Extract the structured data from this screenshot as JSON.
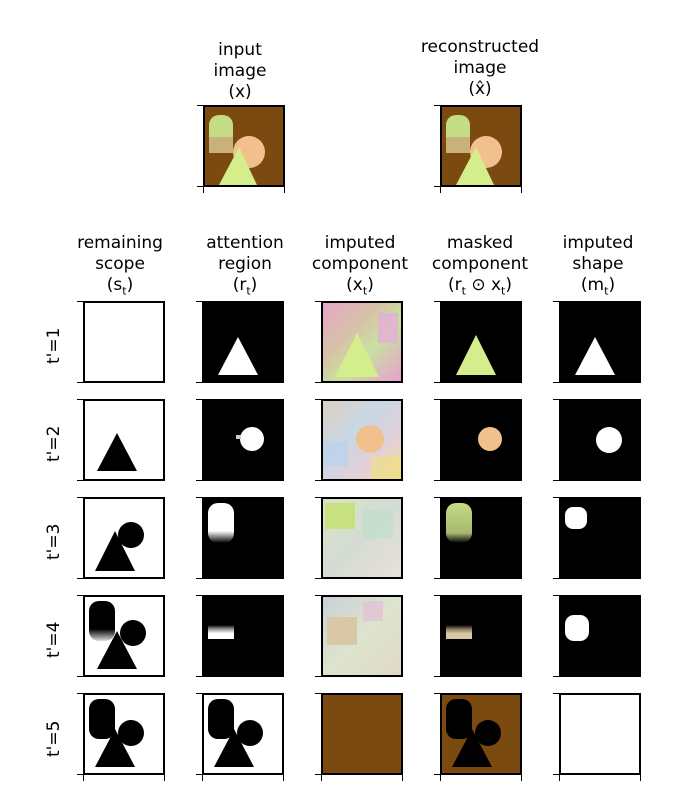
{
  "top_headers": {
    "input_line1": "input",
    "input_line2": "image",
    "input_sym": "(x)",
    "recon_line1": "reconstructed",
    "recon_line2": "image",
    "recon_sym": "(x̂)"
  },
  "col_headers": [
    {
      "line1": "remaining",
      "line2": "scope",
      "sym": "(s",
      "sub": "t",
      "close": ")"
    },
    {
      "line1": "attention",
      "line2": "region",
      "sym": "(r",
      "sub": "t",
      "close": ")"
    },
    {
      "line1": "imputed",
      "line2": "component",
      "sym": "(x",
      "sub": "t",
      "close": ")"
    },
    {
      "line1": "masked",
      "line2": "component",
      "sym": "(r",
      "sub": "t",
      "close": " ⊙ x",
      "sub2": "t",
      "close2": ")"
    },
    {
      "line1": "imputed",
      "line2": "shape",
      "sym": "(m",
      "sub": "t",
      "close": ")"
    }
  ],
  "row_labels": [
    "t'=1",
    "t'=2",
    "t'=3",
    "t'=4",
    "t'=5"
  ],
  "colors": {
    "brown": "#7a4a10",
    "green": "#d4ee8c",
    "peach": "#f2c08c",
    "olive_green": "#c4dc84",
    "black": "#000000",
    "white": "#ffffff"
  }
}
